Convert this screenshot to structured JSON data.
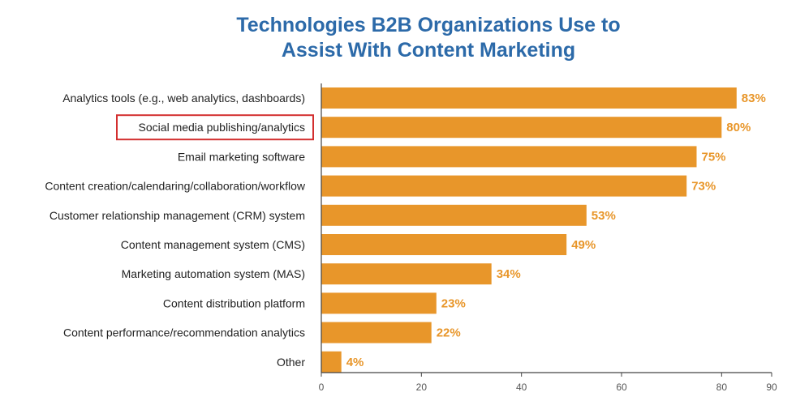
{
  "chart_data": {
    "type": "bar",
    "orientation": "horizontal",
    "title": "Technologies B2B Organizations Use to Assist With Content Marketing",
    "title_lines": [
      "Technologies B2B Organizations Use to",
      "Assist With Content Marketing"
    ],
    "categories": [
      "Analytics tools (e.g., web analytics, dashboards)",
      "Social media publishing/analytics",
      "Email marketing software",
      "Content creation/calendaring/collaboration/workflow",
      "Customer relationship management (CRM) system",
      "Content management system (CMS)",
      "Marketing automation system (MAS)",
      "Content distribution platform",
      "Content performance/recommendation analytics",
      "Other"
    ],
    "values": [
      83,
      80,
      75,
      73,
      53,
      49,
      34,
      23,
      22,
      4
    ],
    "value_labels": [
      "83%",
      "80%",
      "75%",
      "73%",
      "53%",
      "49%",
      "34%",
      "23%",
      "22%",
      "4%"
    ],
    "highlighted_category": "Social media publishing/analytics",
    "xlabel": "",
    "ylabel": "",
    "xlim": [
      0,
      90
    ],
    "xticks": [
      0,
      20,
      40,
      60,
      80,
      90
    ],
    "grid": false,
    "legend": "none",
    "colors": {
      "bar": "#e8962a",
      "value_label": "#e8962a",
      "title": "#2c6aa9",
      "highlight_box": "#d32f2f",
      "axis": "#444444"
    }
  }
}
